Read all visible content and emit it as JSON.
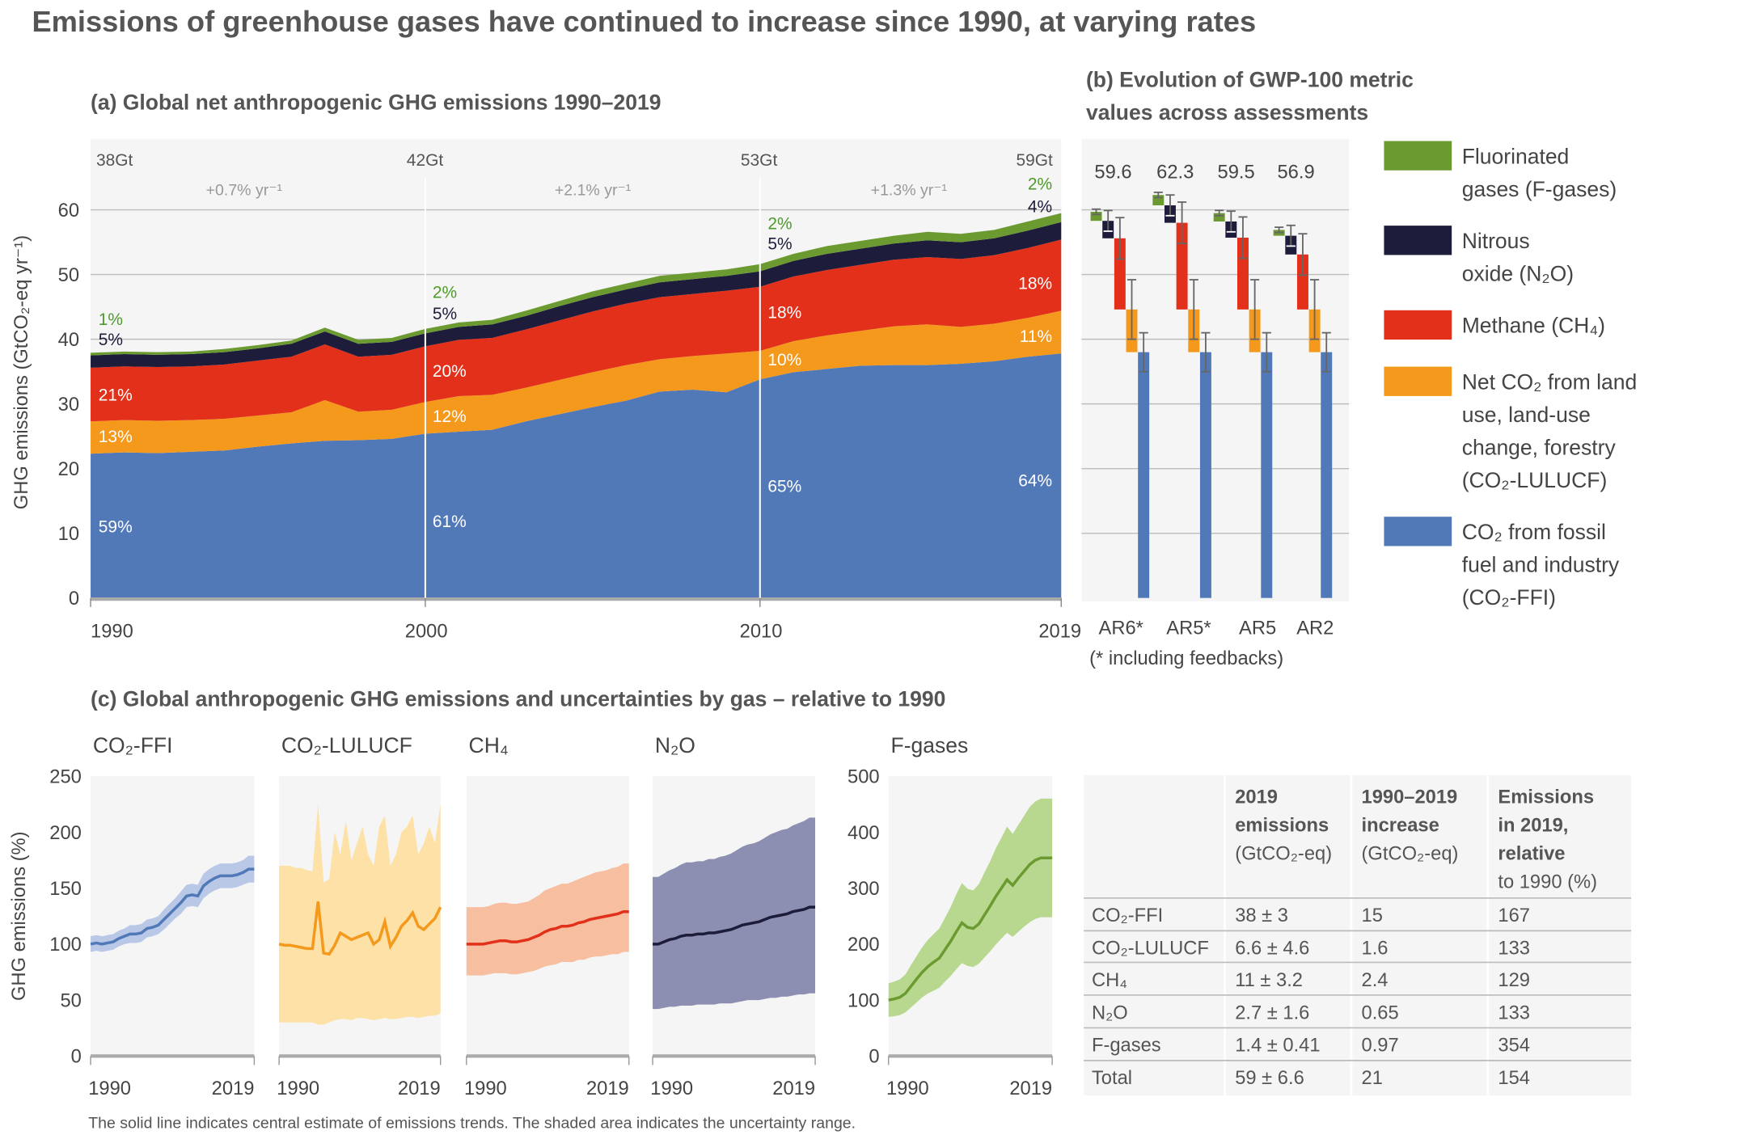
{
  "title": "Emissions of greenhouse gases have continued to increase since 1990, at varying rates",
  "colors": {
    "co2_ffi": "#5179b8",
    "co2_lulucf": "#f4991c",
    "ch4": "#e3301a",
    "n2o": "#1d1c3b",
    "f_gases": "#6b9a31",
    "panel_bg": "#f5f5f5",
    "grid": "#bdbdbd"
  },
  "chart_data": [
    {
      "id": "a",
      "type": "area",
      "stacked": true,
      "title": "(a) Global net anthropogenic GHG emissions 1990–2019",
      "ylabel": "GHG emissions (GtCO₂-eq yr⁻¹)",
      "ylim": [
        0,
        60
      ],
      "yticks": [
        "0",
        "10",
        "20",
        "30",
        "40",
        "50",
        "60"
      ],
      "xticks": [
        "1990",
        "2000",
        "2010",
        "2019"
      ],
      "grid": true,
      "x": [
        1990,
        1991,
        1992,
        1993,
        1994,
        1995,
        1996,
        1997,
        1998,
        1999,
        2000,
        2001,
        2002,
        2003,
        2004,
        2005,
        2006,
        2007,
        2008,
        2009,
        2010,
        2011,
        2012,
        2013,
        2014,
        2015,
        2016,
        2017,
        2018,
        2019
      ],
      "series": [
        {
          "key": "co2_ffi",
          "values": [
            22.3,
            22.5,
            22.4,
            22.6,
            22.8,
            23.4,
            23.9,
            24.3,
            24.4,
            24.6,
            25.4,
            25.7,
            26.0,
            27.3,
            28.4,
            29.5,
            30.5,
            31.9,
            32.2,
            31.8,
            33.8,
            34.9,
            35.4,
            35.9,
            36.0,
            36.0,
            36.2,
            36.6,
            37.3,
            37.8
          ]
        },
        {
          "key": "co2_lulucf",
          "values": [
            5.0,
            5.0,
            5.0,
            4.9,
            4.9,
            4.8,
            4.8,
            6.3,
            4.4,
            4.5,
            4.9,
            5.5,
            5.4,
            5.2,
            5.3,
            5.4,
            5.5,
            5.0,
            5.2,
            6.0,
            4.4,
            4.8,
            5.2,
            5.4,
            6.0,
            6.3,
            5.7,
            5.8,
            6.0,
            6.6
          ]
        },
        {
          "key": "ch4",
          "values": [
            8.3,
            8.3,
            8.3,
            8.3,
            8.4,
            8.5,
            8.6,
            8.6,
            8.5,
            8.5,
            8.6,
            8.7,
            8.8,
            9.0,
            9.2,
            9.4,
            9.5,
            9.6,
            9.6,
            9.7,
            9.9,
            10.0,
            10.1,
            10.2,
            10.3,
            10.4,
            10.5,
            10.6,
            10.8,
            11.0
          ]
        },
        {
          "key": "n2o",
          "values": [
            1.9,
            1.9,
            1.9,
            1.9,
            1.9,
            1.9,
            2.0,
            2.0,
            2.0,
            2.0,
            2.0,
            2.0,
            2.1,
            2.1,
            2.2,
            2.2,
            2.2,
            2.3,
            2.3,
            2.3,
            2.4,
            2.4,
            2.5,
            2.5,
            2.5,
            2.6,
            2.6,
            2.6,
            2.7,
            2.7
          ]
        },
        {
          "key": "f_gases",
          "values": [
            0.4,
            0.4,
            0.4,
            0.4,
            0.5,
            0.5,
            0.5,
            0.6,
            0.6,
            0.6,
            0.7,
            0.7,
            0.7,
            0.8,
            0.8,
            0.9,
            0.9,
            1.0,
            1.0,
            1.0,
            1.1,
            1.1,
            1.2,
            1.2,
            1.2,
            1.3,
            1.3,
            1.3,
            1.4,
            1.4
          ]
        }
      ],
      "totals": [
        {
          "year": 1990,
          "label": "38Gt"
        },
        {
          "year": 2000,
          "label": "42Gt"
        },
        {
          "year": 2010,
          "label": "53Gt"
        },
        {
          "year": 2019,
          "label": "59Gt"
        }
      ],
      "growth_rates": [
        {
          "period": "1990–2000",
          "label": "+0.7% yr⁻¹"
        },
        {
          "period": "2000–2010",
          "label": "+2.1% yr⁻¹"
        },
        {
          "period": "2010–2019",
          "label": "+1.3% yr⁻¹"
        }
      ],
      "shares": [
        {
          "year": 1990,
          "f_gases": "1%",
          "n2o": "5%",
          "ch4": "21%",
          "co2_lulucf": "13%",
          "co2_ffi": "59%"
        },
        {
          "year": 2000,
          "f_gases": "2%",
          "n2o": "5%",
          "ch4": "20%",
          "co2_lulucf": "12%",
          "co2_ffi": "61%"
        },
        {
          "year": 2010,
          "f_gases": "2%",
          "n2o": "5%",
          "ch4": "18%",
          "co2_lulucf": "10%",
          "co2_ffi": "65%"
        },
        {
          "year": 2019,
          "f_gases": "2%",
          "n2o": "4%",
          "ch4": "18%",
          "co2_lulucf": "11%",
          "co2_ffi": "64%"
        }
      ]
    },
    {
      "id": "b",
      "type": "bar",
      "subtype": "waterfall",
      "title_lines": [
        "(b) Evolution of GWP-100 metric",
        "values across assessments"
      ],
      "ylim": [
        0,
        60
      ],
      "categories": [
        "AR6*",
        "AR5*",
        "AR5",
        "AR2"
      ],
      "totals": [
        "59.6",
        "62.3",
        "59.5",
        "56.9"
      ],
      "note": "(* including feedbacks)",
      "series": [
        {
          "key": "co2_ffi",
          "values": [
            38,
            38,
            38,
            38
          ],
          "uncertainty": 3
        },
        {
          "key": "co2_lulucf",
          "values": [
            6.6,
            6.6,
            6.6,
            6.6
          ],
          "uncertainty": 4.6
        },
        {
          "key": "ch4",
          "values": [
            11,
            13.4,
            11.1,
            8.5
          ],
          "uncertainty": 3.2
        },
        {
          "key": "n2o",
          "values": [
            2.7,
            2.7,
            2.5,
            2.9
          ],
          "uncertainty": 1.6
        },
        {
          "key": "f_gases",
          "values": [
            1.4,
            1.6,
            1.3,
            0.9
          ],
          "uncertainty": 0.41
        }
      ]
    },
    {
      "id": "c",
      "type": "line",
      "title": "(c) Global anthropogenic GHG emissions and uncertainties by gas – relative to 1990",
      "ylabel": "GHG emissions (%)",
      "x_start": 1990,
      "x_end": 2019,
      "xticks": [
        "1990",
        "2019"
      ],
      "panels": [
        {
          "key": "co2_ffi",
          "title": "CO₂-FFI",
          "ylim": [
            0,
            250
          ],
          "yticks": [
            "0",
            "50",
            "100",
            "150",
            "200",
            "250"
          ],
          "central": [
            100,
            101,
            100,
            101,
            102,
            105,
            107,
            109,
            109,
            110,
            114,
            115,
            117,
            122,
            127,
            132,
            137,
            143,
            144,
            143,
            152,
            156,
            159,
            161,
            161,
            161,
            162,
            164,
            167,
            167
          ],
          "lower": [
            93,
            94,
            93,
            94,
            95,
            98,
            100,
            101,
            101,
            102,
            106,
            107,
            109,
            113,
            118,
            123,
            127,
            133,
            134,
            133,
            141,
            145,
            148,
            150,
            150,
            150,
            151,
            153,
            155,
            155
          ],
          "upper": [
            107,
            108,
            107,
            108,
            109,
            112,
            114,
            117,
            117,
            118,
            122,
            123,
            125,
            131,
            136,
            141,
            147,
            153,
            154,
            153,
            163,
            167,
            170,
            172,
            172,
            172,
            173,
            175,
            179,
            179
          ]
        },
        {
          "key": "co2_lulucf",
          "title": "CO₂-LULUCF",
          "ylim": [
            0,
            250
          ],
          "central": [
            100,
            99,
            99,
            98,
            97,
            96,
            96,
            138,
            92,
            91,
            99,
            110,
            107,
            104,
            106,
            108,
            110,
            100,
            104,
            120,
            98,
            106,
            116,
            121,
            128,
            116,
            113,
            118,
            123,
            133
          ],
          "lower": [
            30,
            30,
            30,
            30,
            30,
            30,
            30,
            28,
            28,
            30,
            32,
            33,
            33,
            32,
            34,
            34,
            33,
            32,
            33,
            34,
            33,
            33,
            34,
            35,
            35,
            34,
            35,
            36,
            36,
            38
          ],
          "upper": [
            170,
            170,
            170,
            168,
            168,
            166,
            165,
            225,
            155,
            158,
            200,
            180,
            210,
            175,
            190,
            205,
            180,
            170,
            205,
            215,
            170,
            180,
            200,
            205,
            215,
            180,
            190,
            205,
            190,
            225
          ]
        },
        {
          "key": "ch4",
          "title": "CH₄",
          "ylim": [
            0,
            250
          ],
          "central": [
            100,
            100,
            100,
            100,
            101,
            102,
            103,
            103,
            102,
            102,
            103,
            104,
            106,
            108,
            111,
            113,
            114,
            116,
            116,
            117,
            119,
            120,
            122,
            123,
            124,
            125,
            126,
            127,
            129,
            129
          ],
          "lower": [
            72,
            72,
            72,
            72,
            73,
            74,
            74,
            74,
            73,
            73,
            74,
            75,
            76,
            78,
            80,
            81,
            82,
            84,
            84,
            84,
            86,
            86,
            88,
            89,
            89,
            90,
            91,
            91,
            93,
            93
          ],
          "upper": [
            133,
            133,
            133,
            133,
            134,
            136,
            137,
            137,
            136,
            136,
            137,
            138,
            141,
            144,
            148,
            150,
            152,
            154,
            154,
            156,
            158,
            160,
            162,
            164,
            165,
            166,
            168,
            169,
            172,
            172
          ]
        },
        {
          "key": "n2o",
          "title": "N₂O",
          "ylim": [
            0,
            250
          ],
          "central": [
            100,
            100,
            102,
            104,
            105,
            107,
            108,
            108,
            109,
            109,
            110,
            110,
            111,
            112,
            113,
            115,
            117,
            118,
            119,
            120,
            122,
            124,
            125,
            126,
            127,
            129,
            130,
            131,
            133,
            133
          ],
          "lower": [
            42,
            42,
            43,
            44,
            44,
            45,
            45,
            45,
            46,
            46,
            46,
            46,
            47,
            47,
            47,
            48,
            49,
            50,
            50,
            50,
            51,
            52,
            52,
            53,
            53,
            54,
            55,
            55,
            56,
            56
          ],
          "upper": [
            160,
            160,
            163,
            166,
            168,
            171,
            173,
            173,
            174,
            174,
            176,
            176,
            178,
            179,
            181,
            184,
            187,
            189,
            190,
            192,
            195,
            198,
            200,
            202,
            203,
            206,
            208,
            210,
            213,
            213
          ]
        },
        {
          "key": "f_gases",
          "title": "F-gases",
          "ylim": [
            0,
            500
          ],
          "yticks": [
            "0",
            "100",
            "200",
            "300",
            "400",
            "500"
          ],
          "central": [
            100,
            102,
            105,
            112,
            125,
            138,
            150,
            160,
            168,
            175,
            190,
            205,
            222,
            238,
            230,
            228,
            236,
            252,
            268,
            285,
            300,
            315,
            305,
            318,
            330,
            342,
            350,
            354,
            354,
            354
          ],
          "lower": [
            70,
            71,
            73,
            78,
            87,
            96,
            105,
            112,
            117,
            122,
            133,
            143,
            155,
            166,
            161,
            159,
            165,
            176,
            187,
            199,
            210,
            220,
            213,
            222,
            231,
            239,
            245,
            248,
            248,
            248
          ],
          "upper": [
            130,
            133,
            137,
            146,
            163,
            179,
            195,
            208,
            218,
            228,
            247,
            266,
            289,
            309,
            299,
            296,
            307,
            328,
            348,
            371,
            390,
            410,
            397,
            413,
            429,
            445,
            455,
            460,
            460,
            460
          ]
        }
      ]
    }
  ],
  "legend": [
    {
      "key": "f_gases",
      "lines": [
        "Fluorinated",
        "gases (F-gases)"
      ]
    },
    {
      "key": "n2o",
      "lines": [
        "Nitrous",
        "oxide (N₂O)"
      ]
    },
    {
      "key": "ch4",
      "lines": [
        "Methane (CH₄)"
      ]
    },
    {
      "key": "co2_lulucf",
      "lines": [
        "Net CO₂ from land",
        "use, land-use",
        "change, forestry",
        "(CO₂-LULUCF)"
      ]
    },
    {
      "key": "co2_ffi",
      "lines": [
        "CO₂ from fossil",
        "fuel and industry",
        "(CO₂-FFI)"
      ]
    }
  ],
  "table": {
    "headers": [
      [
        ""
      ],
      [
        "2019",
        "emissions",
        "(GtCO₂-eq)"
      ],
      [
        "1990–2019",
        "increase",
        "(GtCO₂-eq)"
      ],
      [
        "Emissions",
        "in 2019,",
        "relative",
        "to 1990 (%)"
      ]
    ],
    "rows": [
      [
        "CO₂-FFI",
        "38 ± 3",
        "15",
        "167"
      ],
      [
        "CO₂-LULUCF",
        "6.6 ± 4.6",
        "1.6",
        "133"
      ],
      [
        "CH₄",
        "11 ± 3.2",
        "2.4",
        "129"
      ],
      [
        "N₂O",
        "2.7 ± 1.6",
        "0.65",
        "133"
      ],
      [
        "F-gases",
        "1.4 ± 0.41",
        "0.97",
        "354"
      ],
      [
        "Total",
        "59 ± 6.6",
        "21",
        "154"
      ]
    ]
  },
  "footnote": "The solid line indicates central estimate of emissions trends. The shaded area indicates the uncertainty range."
}
